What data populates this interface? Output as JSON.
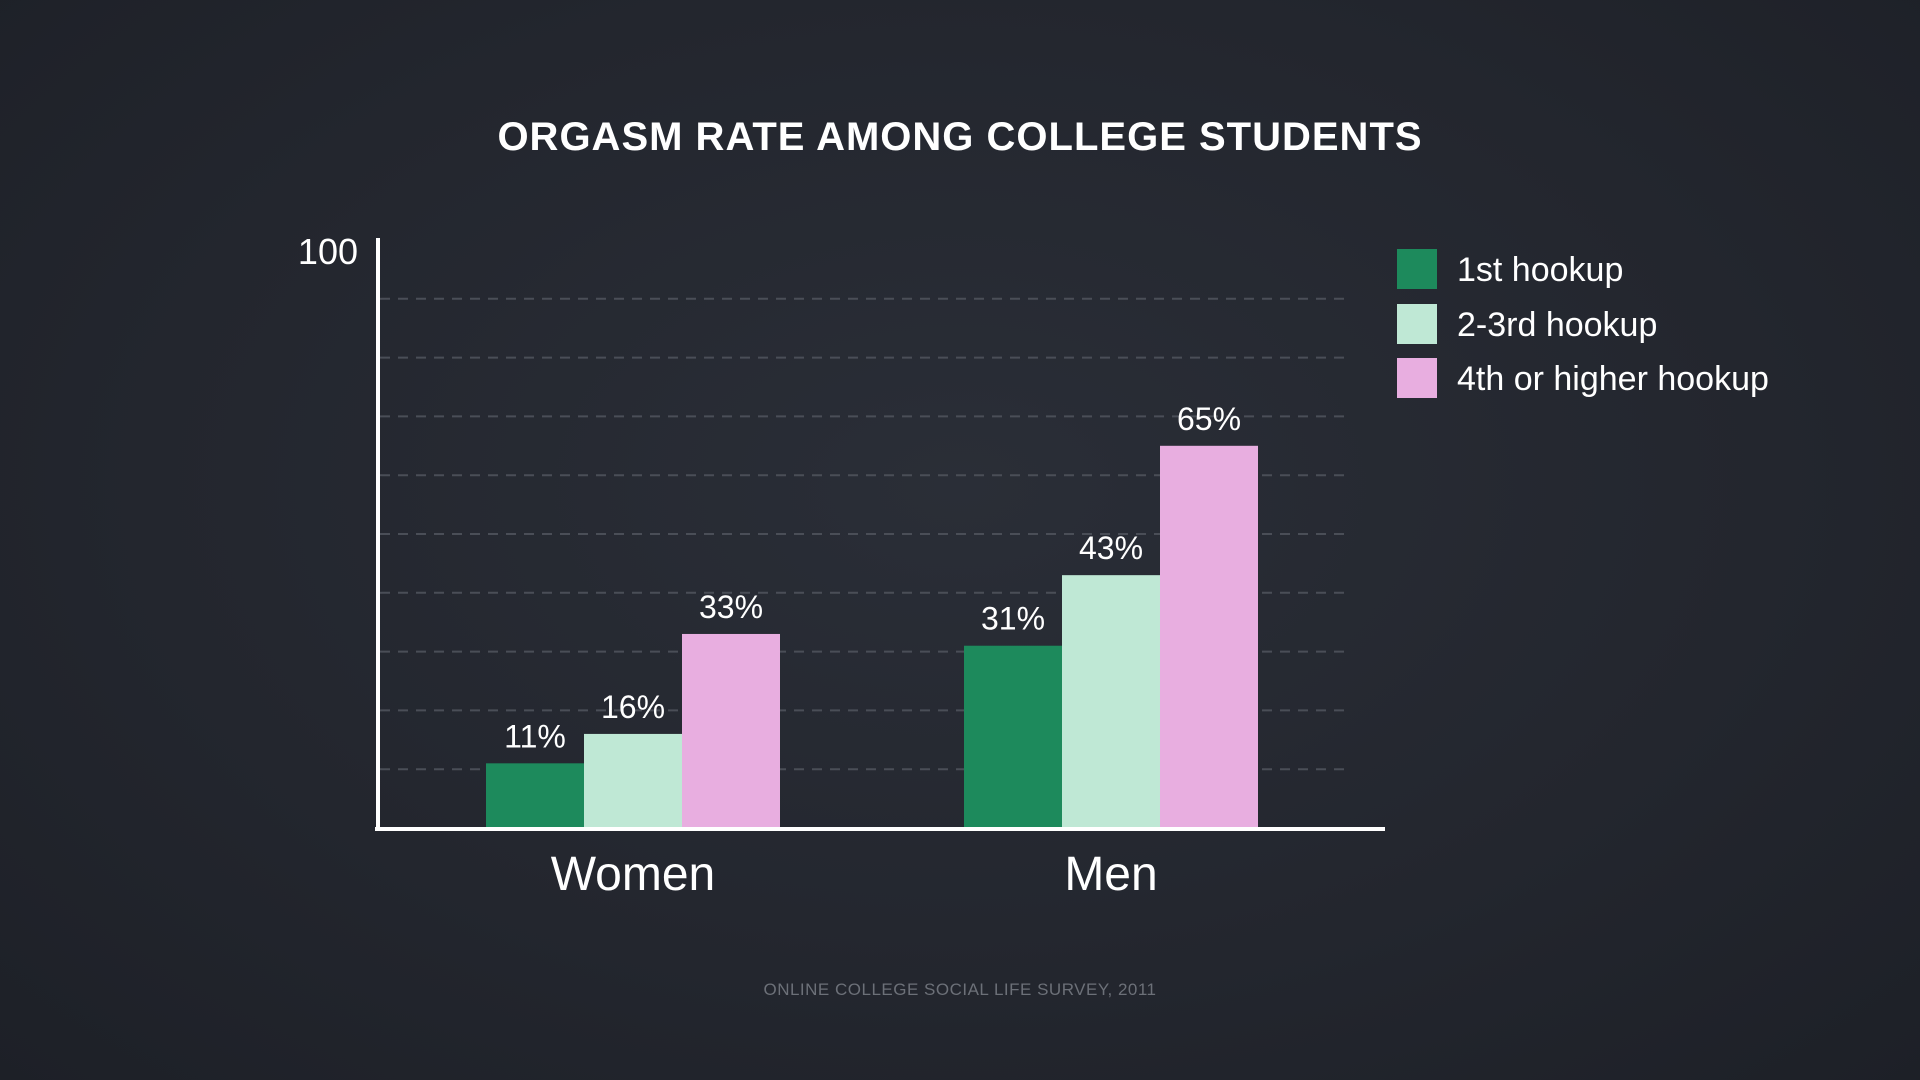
{
  "chart_data": {
    "type": "bar",
    "title": "ORGASM RATE AMONG COLLEGE STUDENTS",
    "categories": [
      "Women",
      "Men"
    ],
    "series": [
      {
        "name": "1st hookup",
        "values": [
          11,
          31
        ],
        "labels": [
          "11%",
          "31%"
        ],
        "color": "#1d8a5c"
      },
      {
        "name": "2-3rd hookup",
        "values": [
          16,
          43
        ],
        "labels": [
          "16%",
          "43%"
        ],
        "color": "#bfe8d5"
      },
      {
        "name": "4th or higher hookup",
        "values": [
          33,
          65
        ],
        "labels": [
          "33%",
          "65%"
        ],
        "color": "#e8aee0"
      }
    ],
    "ylim": [
      0,
      100
    ],
    "y_tick_label": "100",
    "grid": true,
    "legend": "top-right",
    "source": "ONLINE COLLEGE SOCIAL LIFE SURVEY, 2011"
  }
}
